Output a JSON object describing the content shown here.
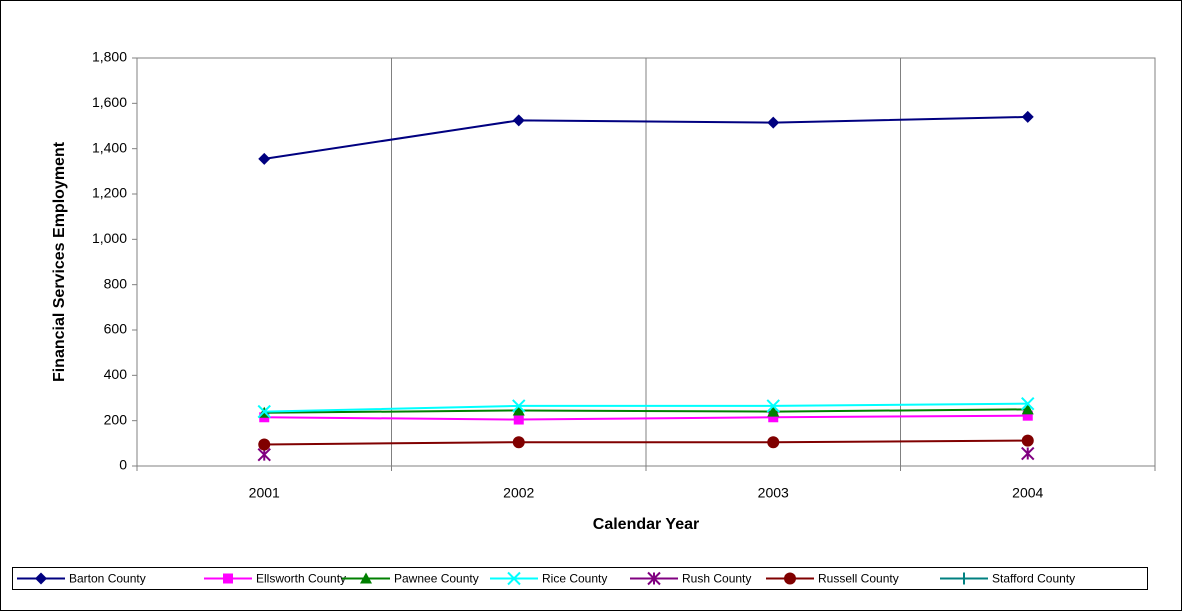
{
  "chart_data": {
    "type": "line",
    "xlabel": "Calendar Year",
    "ylabel": "Financial Services Employment",
    "categories": [
      "2001",
      "2002",
      "2003",
      "2004"
    ],
    "ylim": [
      0,
      1800
    ],
    "yticks": [
      0,
      200,
      400,
      600,
      800,
      {
        "value": 1000,
        "label": "1,000"
      },
      {
        "value": 1200,
        "label": "1,200"
      },
      {
        "value": 1400,
        "label": "1,400"
      },
      {
        "value": 1600,
        "label": "1,600"
      },
      {
        "value": 1800,
        "label": "1,800"
      }
    ],
    "grid": "x",
    "legend": "bottom",
    "series": [
      {
        "name": "Barton County",
        "color": "#000080",
        "marker": "diamond",
        "values": [
          1355,
          1525,
          1515,
          1540
        ]
      },
      {
        "name": "Ellsworth County",
        "color": "#ff00ff",
        "marker": "square",
        "values": [
          215,
          205,
          215,
          222
        ]
      },
      {
        "name": "Pawnee County",
        "color": "#008000",
        "marker": "triangle",
        "values": [
          235,
          245,
          240,
          250
        ]
      },
      {
        "name": "Rice County",
        "color": "#00ffff",
        "marker": "x",
        "values": [
          240,
          265,
          265,
          275
        ]
      },
      {
        "name": "Rush County",
        "color": "#800080",
        "marker": "star",
        "values": [
          50,
          null,
          null,
          55
        ]
      },
      {
        "name": "Russell County",
        "color": "#800000",
        "marker": "circle",
        "values": [
          95,
          105,
          105,
          112
        ]
      },
      {
        "name": "Stafford County",
        "color": "#008080",
        "marker": "plus",
        "values": [
          null,
          null,
          null,
          null
        ]
      }
    ]
  }
}
